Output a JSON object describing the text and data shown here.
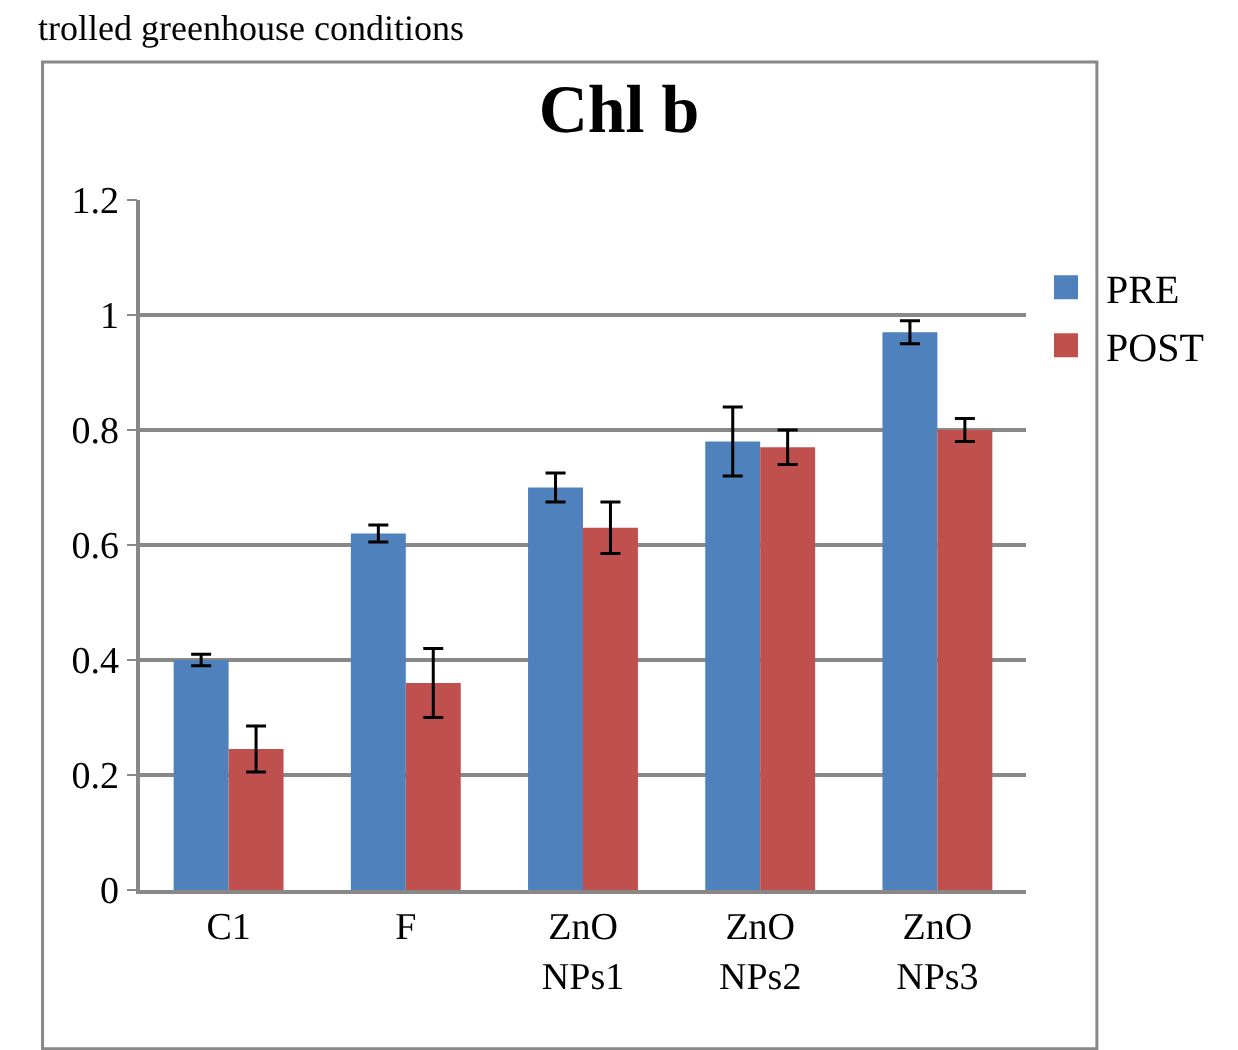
{
  "chart_data": {
    "type": "bar",
    "title": "Chl b",
    "annotations": [
      "trolled greenhouse conditions"
    ],
    "categories": [
      "C1",
      "F",
      "ZnO NPs1",
      "ZnO NPs2",
      "ZnO NPs3"
    ],
    "series": [
      {
        "name": "PRE",
        "color": "#4f81bd",
        "values": [
          0.4,
          0.62,
          0.7,
          0.78,
          0.97
        ],
        "errors": [
          0.01,
          0.015,
          0.025,
          0.06,
          0.02
        ]
      },
      {
        "name": "POST",
        "color": "#c0504d",
        "values": [
          0.245,
          0.36,
          0.63,
          0.77,
          0.8
        ],
        "errors": [
          0.04,
          0.06,
          0.045,
          0.03,
          0.02
        ]
      }
    ],
    "ylim": [
      0,
      1.2
    ],
    "yticks": [
      0,
      0.2,
      0.4,
      0.6,
      0.8,
      1,
      1.2
    ],
    "grid": "y",
    "legend": "top right"
  }
}
